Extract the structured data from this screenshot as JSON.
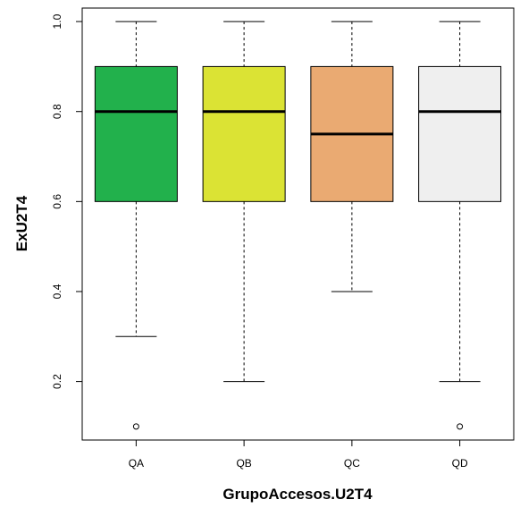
{
  "chart_data": {
    "type": "boxplot",
    "title": "",
    "xlabel": "GrupoAccesos.U2T4",
    "ylabel": "ExU2T4",
    "ylim": [
      0.07,
      1.03
    ],
    "yticks": [
      "0.2",
      "0.4",
      "0.6",
      "0.8",
      "1.0"
    ],
    "grid": false,
    "legend": "none",
    "categories": [
      "QA",
      "QB",
      "QC",
      "QD"
    ],
    "boxes": [
      {
        "name": "QA",
        "whisker_low": 0.3,
        "q1": 0.6,
        "median": 0.8,
        "q3": 0.9,
        "whisker_high": 1.0,
        "outliers": [
          0.1
        ],
        "color": "#22B14C"
      },
      {
        "name": "QB",
        "whisker_low": 0.2,
        "q1": 0.6,
        "median": 0.8,
        "q3": 0.9,
        "whisker_high": 1.0,
        "outliers": [],
        "color": "#DBE334"
      },
      {
        "name": "QC",
        "whisker_low": 0.4,
        "q1": 0.6,
        "median": 0.75,
        "q3": 0.9,
        "whisker_high": 1.0,
        "outliers": [],
        "color": "#EAAA72"
      },
      {
        "name": "QD",
        "whisker_low": 0.2,
        "q1": 0.6,
        "median": 0.8,
        "q3": 0.9,
        "whisker_high": 1.0,
        "outliers": [
          0.1
        ],
        "color": "#EFEFEF"
      }
    ]
  }
}
